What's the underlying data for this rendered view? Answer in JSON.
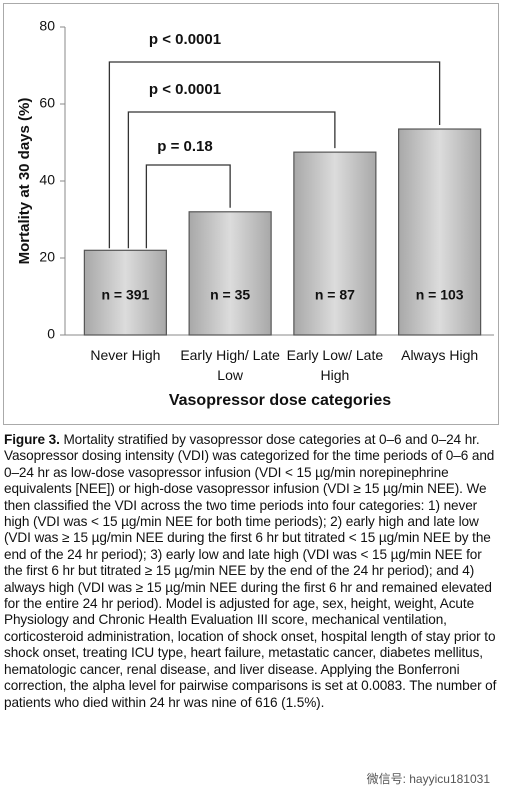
{
  "chart_data": {
    "type": "bar",
    "y_label": "Mortality at 30 days (%)",
    "x_label": "Vasopressor dose categories",
    "categories": [
      "Never High",
      "Early High/ Late Low",
      "Early Low/ Late High",
      "Always High"
    ],
    "values": [
      22,
      32,
      47.5,
      53.5
    ],
    "bar_labels": [
      "n = 391",
      "n = 35",
      "n = 87",
      "n = 103"
    ],
    "annotations": [
      "p = 0.18",
      "p < 0.0001",
      "p < 0.0001"
    ],
    "color": "#c4c4c4",
    "ylim": [
      0,
      80
    ],
    "yticks": [
      0,
      20,
      40,
      60,
      80
    ]
  },
  "caption": {
    "label": "Figure 3.",
    "text": "Mortality stratified by vasopressor dose categories at 0–6 and 0–24 hr. Vasopressor dosing intensity (VDI) was categorized for the time periods of 0–6 and 0–24 hr as low-dose vasopressor infusion (VDI < 15 µg/min norepinephrine equivalents [NEE]) or high-dose vasopressor infusion (VDI ≥ 15 µg/min NEE). We then classified the VDI across the two time periods into four categories: 1) never high (VDI was < 15 µg/min NEE for both time periods); 2) early high and late low (VDI was ≥ 15 µg/min NEE during the first 6 hr but titrated < 15 µg/min NEE by the end of the 24 hr period); 3) early low and late high (VDI was < 15 µg/min NEE for the first 6 hr but titrated ≥ 15 µg/min NEE by the end of the 24 hr period); and 4) always high (VDI was ≥ 15 µg/min NEE during the first 6 hr and remained elevated for the entire 24 hr period). Model is adjusted for age, sex, height, weight, Acute Physiology and Chronic Health Evaluation III score, mechanical ventilation, corticosteroid administration, location of shock onset, hospital length of stay prior to shock onset, treating ICU type, heart failure, metastatic cancer, diabetes mellitus, hematologic cancer, renal disease, and liver disease. Applying the Bonferroni correction, the alpha level for pairwise comparisons is set at 0.0083. The number of patients who died within 24 hr was nine of 616 (1.5%)."
  },
  "watermark": "微信号: hayyicu181031"
}
